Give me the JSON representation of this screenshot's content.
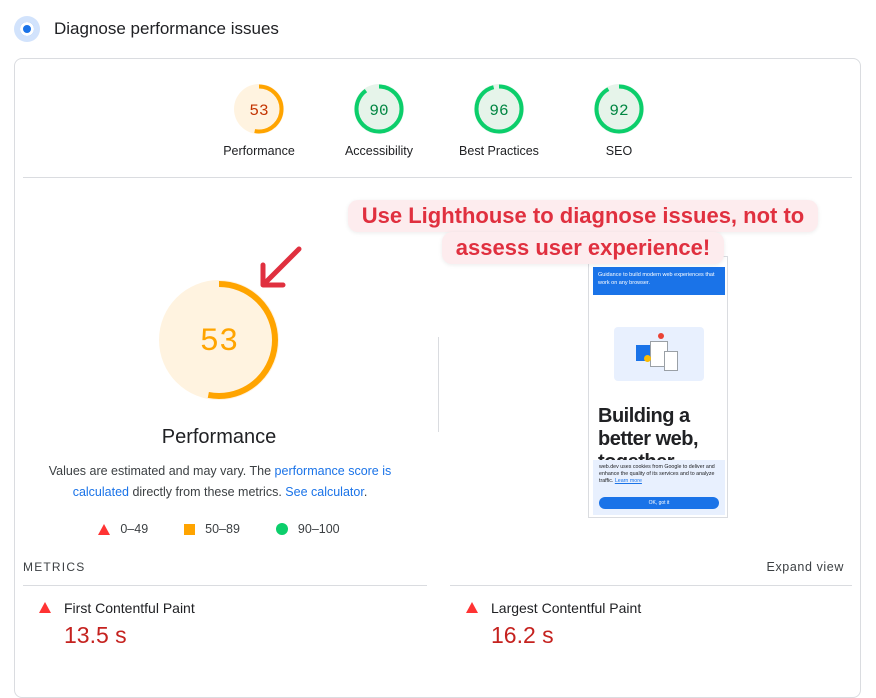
{
  "header": {
    "title": "Diagnose performance issues",
    "icon": "lighthouse-icon"
  },
  "colors": {
    "fail": "#ff3333",
    "average": "#ffa400",
    "pass": "#0cce6b",
    "link": "#1a73e8",
    "callout": "#e0303f"
  },
  "gauges": [
    {
      "score": "53",
      "label": "Performance",
      "value": 53,
      "status": "average"
    },
    {
      "score": "90",
      "label": "Accessibility",
      "value": 90,
      "status": "pass"
    },
    {
      "score": "96",
      "label": "Best Practices",
      "value": 96,
      "status": "pass"
    },
    {
      "score": "92",
      "label": "SEO",
      "value": 92,
      "status": "pass"
    }
  ],
  "performance": {
    "score": "53",
    "value": 53,
    "title": "Performance",
    "desc_pre": "Values are estimated and may vary. The ",
    "desc_link1": "performance score is calculated",
    "desc_mid": " directly from these metrics. ",
    "desc_link2": "See calculator",
    "desc_post": "."
  },
  "legend": [
    {
      "range": "0–49",
      "shape": "triangle"
    },
    {
      "range": "50–89",
      "shape": "square"
    },
    {
      "range": "90–100",
      "shape": "circle"
    }
  ],
  "callout": {
    "line1": "Use Lighthouse to diagnose issues, not to",
    "line2": "assess user experience!"
  },
  "preview": {
    "banner": "Guidance to build modern web experiences that work on any browser.",
    "heading": "Building a better web, together",
    "cookie_text": "web.dev uses cookies from Google to deliver and enhance the quality of its services and to analyze traffic.",
    "cookie_link": "Learn more",
    "ok_button": "OK, got it"
  },
  "metrics": {
    "label": "METRICS",
    "expand": "Expand view",
    "items": [
      {
        "name": "First Contentful Paint",
        "value": "13.5 s"
      },
      {
        "name": "Largest Contentful Paint",
        "value": "16.2 s"
      }
    ]
  }
}
